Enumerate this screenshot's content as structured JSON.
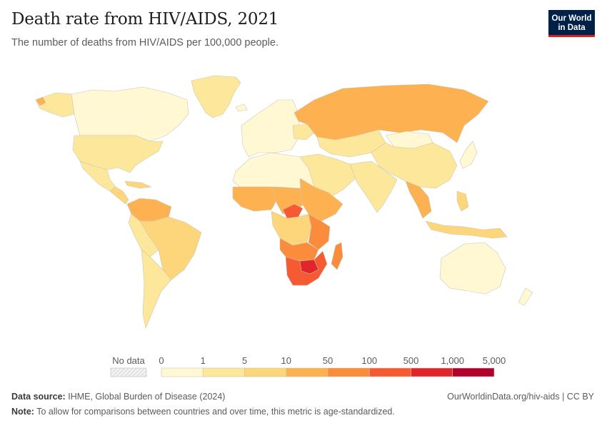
{
  "header": {
    "title": "Death rate from HIV/AIDS, 2021",
    "subtitle": "The number of deaths from HIV/AIDS per 100,000 people.",
    "logo_line1": "Our World",
    "logo_line2": "in Data"
  },
  "legend": {
    "no_data_label": "No data",
    "tick_labels": [
      "0",
      "1",
      "5",
      "10",
      "50",
      "100",
      "500",
      "1,000",
      "5,000"
    ],
    "bin_colors": [
      "#fff8d2",
      "#fde79a",
      "#fdd57a",
      "#fdb150",
      "#fb8c3c",
      "#f65a33",
      "#e1252a",
      "#b2002c"
    ]
  },
  "footer": {
    "source_label": "Data source:",
    "source_text": "IHME, Global Burden of Disease (2024)",
    "note_label": "Note:",
    "note_text": "To allow for comparisons between countries and over time, this metric is age-standardized.",
    "credit": "OurWorldinData.org/hiv-aids | CC BY"
  }
}
